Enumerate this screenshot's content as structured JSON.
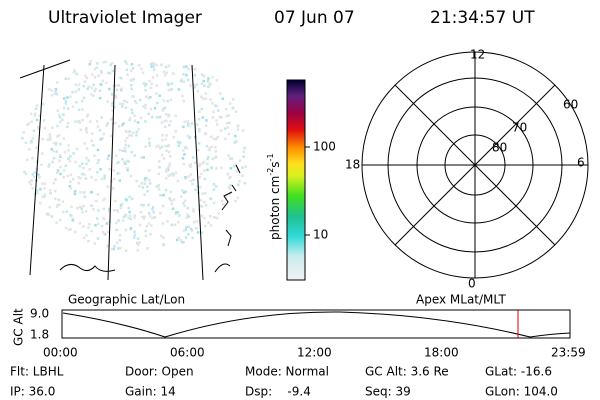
{
  "header": {
    "instrument": "Ultraviolet Imager",
    "date": "07 Jun 07",
    "time": "21:34:57 UT"
  },
  "colorbar": {
    "label": [
      "photon cm",
      "-2",
      "s",
      "-1"
    ],
    "ticks": [
      "100",
      "10"
    ]
  },
  "polar": {
    "mlt_labels": [
      "12",
      "18",
      "6",
      "0"
    ],
    "lat_labels": [
      "60",
      "70",
      "80"
    ]
  },
  "map_labels": {
    "left": "Geographic Lat/Lon",
    "right": "Apex MLat/MLT"
  },
  "altitude": {
    "y_label": "GC Alt",
    "yticks": [
      "9.0",
      "1.8"
    ],
    "xticks": [
      "00:00",
      "06:00",
      "12:00",
      "18:00",
      "23:59"
    ]
  },
  "footer": {
    "rows": [
      [
        "Flt: LBHL",
        "Door: Open",
        "Mode: Normal",
        "GC Alt: 3.6 Re",
        "GLat: -16.6"
      ],
      [
        "IP: 36.0",
        "Gain: 14",
        "Dsp:    -9.4",
        "Seq: 39",
        "GLon: 104.0"
      ]
    ]
  }
}
